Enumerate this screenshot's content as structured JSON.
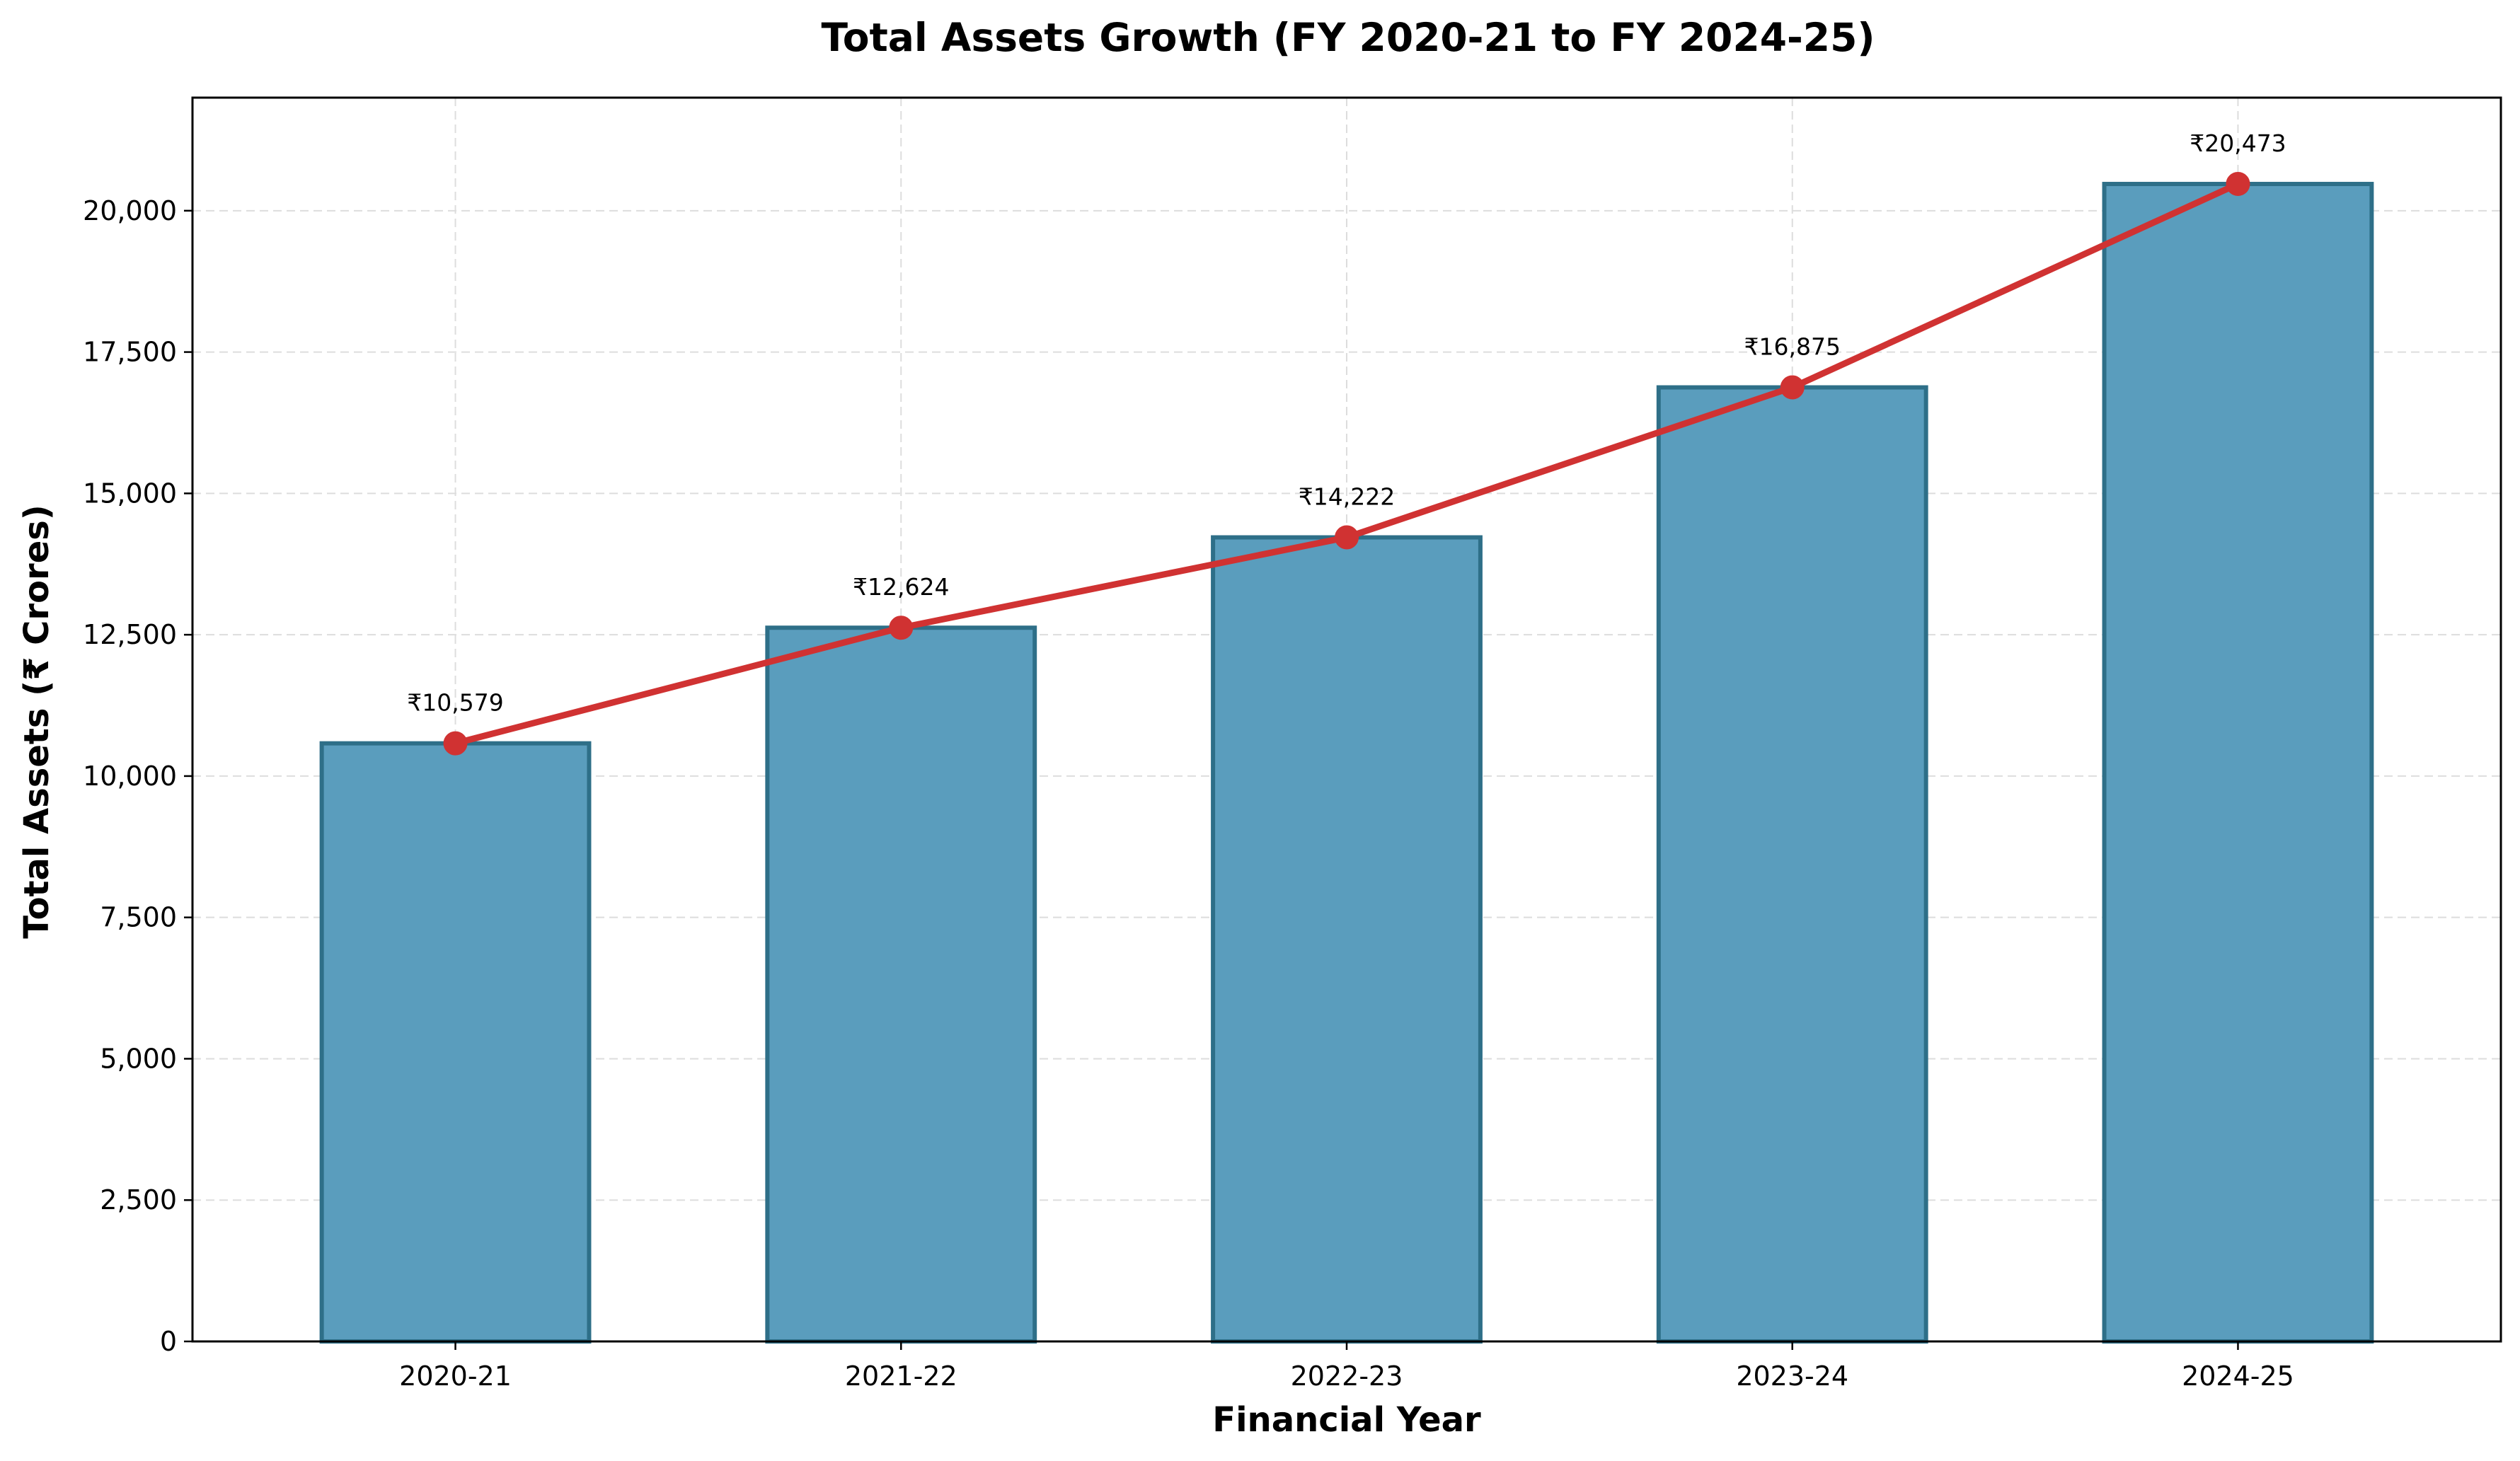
{
  "chart_data": {
    "type": "bar",
    "title": "Total Assets Growth (FY 2020-21 to FY 2024-25)",
    "xlabel": "Financial Year",
    "ylabel": "Total Assets (₹ Crores)",
    "categories": [
      "2020-21",
      "2021-22",
      "2022-23",
      "2023-24",
      "2024-25"
    ],
    "series": [
      {
        "type": "bar",
        "values": [
          10579,
          12624,
          14222,
          16875,
          20473
        ],
        "color": "#5a9dbd",
        "edge_color": "#2e6f88"
      },
      {
        "type": "line",
        "values": [
          10579,
          12624,
          14222,
          16875,
          20473
        ],
        "color": "#d03232",
        "marker": "circle"
      }
    ],
    "data_labels": [
      "₹10,579",
      "₹12,624",
      "₹14,222",
      "₹16,875",
      "₹20,473"
    ],
    "ylim": [
      0,
      22000
    ],
    "yticks": [
      0,
      2500,
      5000,
      7500,
      10000,
      12500,
      15000,
      17500,
      20000
    ],
    "ytick_labels": [
      "0",
      "2,500",
      "5,000",
      "7,500",
      "10,000",
      "12,500",
      "15,000",
      "17,500",
      "20,000"
    ],
    "grid": true,
    "legend": "none"
  }
}
